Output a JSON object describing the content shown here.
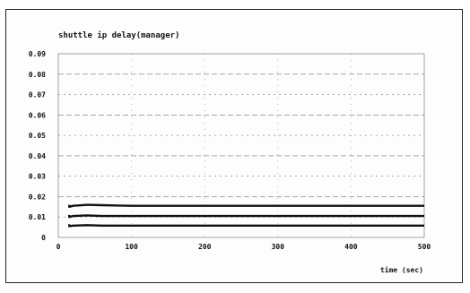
{
  "chart_data": {
    "type": "line",
    "title": "shuttle ip delay(manager)",
    "xlabel": "time (sec)",
    "ylabel": "",
    "xlim": [
      0,
      500
    ],
    "ylim": [
      0,
      0.09
    ],
    "x_ticks": [
      0,
      100,
      200,
      300,
      400,
      500
    ],
    "x_tick_labels": [
      "0",
      "100",
      "200",
      "300",
      "400",
      "500"
    ],
    "y_ticks": [
      0,
      0.01,
      0.02,
      0.03,
      0.04,
      0.05,
      0.06,
      0.07,
      0.08,
      0.09
    ],
    "y_tick_labels": [
      "0",
      "0.01",
      "0.02",
      "0.03",
      "0.04",
      "0.05",
      "0.06",
      "0.07",
      "0.08",
      "0.09"
    ],
    "grid": true,
    "series": [
      {
        "x": [
          15,
          15,
          20,
          40,
          60,
          100,
          200,
          300,
          400,
          500
        ],
        "values": [
          0.016,
          0.015,
          0.0155,
          0.016,
          0.0158,
          0.0155,
          0.0155,
          0.0155,
          0.0155,
          0.0155
        ]
      },
      {
        "x": [
          15,
          15,
          20,
          40,
          60,
          100,
          200,
          300,
          400,
          500
        ],
        "values": [
          0.011,
          0.01,
          0.0105,
          0.0108,
          0.0105,
          0.0105,
          0.0105,
          0.0105,
          0.0105,
          0.0105
        ]
      },
      {
        "x": [
          15,
          15,
          20,
          40,
          60,
          100,
          200,
          300,
          400,
          500
        ],
        "values": [
          0.0065,
          0.0055,
          0.0058,
          0.006,
          0.0058,
          0.0058,
          0.0058,
          0.0058,
          0.0058,
          0.0058
        ]
      }
    ]
  }
}
